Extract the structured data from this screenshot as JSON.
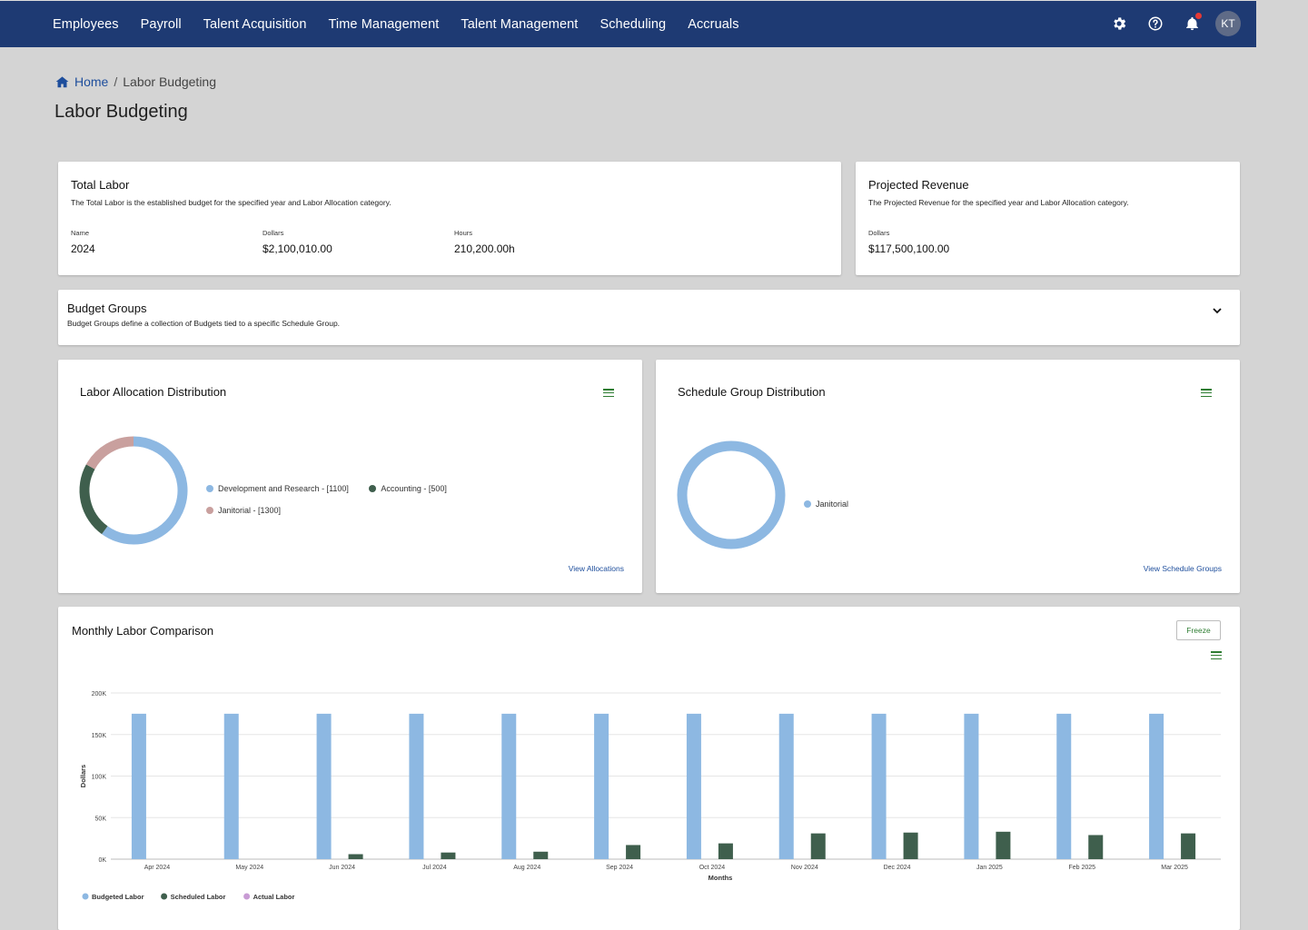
{
  "nav": {
    "items": [
      "Employees",
      "Payroll",
      "Talent Acquisition",
      "Time Management",
      "Talent Management",
      "Scheduling",
      "Accruals"
    ],
    "avatar_initials": "KT",
    "icons": [
      "gear-icon",
      "help-icon",
      "bell-icon"
    ]
  },
  "breadcrumb": {
    "home": "Home",
    "separator": "/",
    "current": "Labor Budgeting"
  },
  "page_title": "Labor Budgeting",
  "total_labor": {
    "title": "Total Labor",
    "description": "The Total Labor is the established budget for the specified year and Labor Allocation category.",
    "name_label": "Name",
    "name_value": "2024",
    "dollars_label": "Dollars",
    "dollars_value": "$2,100,010.00",
    "hours_label": "Hours",
    "hours_value": "210,200.00h"
  },
  "projected_revenue": {
    "title": "Projected Revenue",
    "description": "The Projected Revenue for the specified year and Labor Allocation category.",
    "dollars_label": "Dollars",
    "dollars_value": "$117,500,100.00"
  },
  "budget_groups": {
    "title": "Budget Groups",
    "description": "Budget Groups define a collection of Budgets tied to a specific Schedule Group."
  },
  "labor_allocation": {
    "title": "Labor Allocation Distribution",
    "link": "View Allocations",
    "legend": [
      {
        "label": "Development and Research - [1100]",
        "color": "#8db8e2"
      },
      {
        "label": "Accounting - [500]",
        "color": "#3f5f4d"
      },
      {
        "label": "Janitorial - [1300]",
        "color": "#c9a09e"
      }
    ]
  },
  "schedule_group": {
    "title": "Schedule Group Distribution",
    "link": "View Schedule Groups",
    "legend": [
      {
        "label": "Janitorial",
        "color": "#8db8e2"
      }
    ]
  },
  "monthly": {
    "title": "Monthly Labor Comparison",
    "freeze_label": "Freeze"
  },
  "chart_data": [
    {
      "type": "pie",
      "title": "Labor Allocation Distribution",
      "donut": true,
      "labels": [
        "Development and Research",
        "Accounting",
        "Janitorial"
      ],
      "values": [
        0.6,
        0.23,
        0.17
      ],
      "colors": [
        "#8db8e2",
        "#3f5f4d",
        "#c9a09e"
      ]
    },
    {
      "type": "pie",
      "title": "Schedule Group Distribution",
      "donut": true,
      "labels": [
        "Janitorial"
      ],
      "values": [
        1.0
      ],
      "colors": [
        "#8db8e2"
      ]
    },
    {
      "type": "bar",
      "title": "Monthly Labor Comparison",
      "xlabel": "Months",
      "ylabel": "Dollars",
      "ylim": [
        0,
        200000
      ],
      "yticks": [
        "0K",
        "50K",
        "100K",
        "150K",
        "200K"
      ],
      "categories": [
        "Apr 2024",
        "May 2024",
        "Jun 2024",
        "Jul 2024",
        "Aug 2024",
        "Sep 2024",
        "Oct 2024",
        "Nov 2024",
        "Dec 2024",
        "Jan 2025",
        "Feb 2025",
        "Mar 2025"
      ],
      "series": [
        {
          "name": "Budgeted Labor",
          "color": "#8db8e2",
          "values": [
            175000,
            175000,
            175000,
            175000,
            175000,
            175000,
            175000,
            175000,
            175000,
            175000,
            175000,
            175000
          ]
        },
        {
          "name": "Scheduled Labor",
          "color": "#3f5f4d",
          "values": [
            0,
            0,
            6000,
            8000,
            9000,
            17000,
            19000,
            31000,
            32000,
            33000,
            29000,
            31000
          ]
        },
        {
          "name": "Actual Labor",
          "color": "#c89bd4",
          "values": [
            0,
            0,
            0,
            0,
            0,
            0,
            0,
            0,
            0,
            0,
            0,
            0
          ]
        }
      ],
      "legend": "bottom-left",
      "grid": true
    }
  ]
}
